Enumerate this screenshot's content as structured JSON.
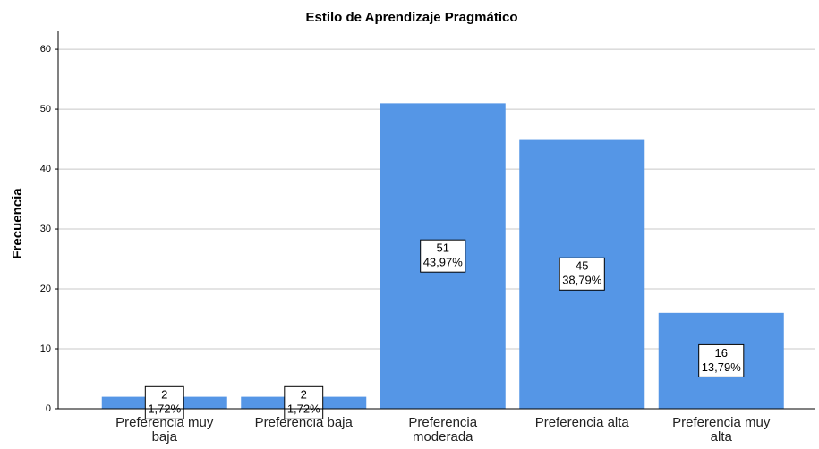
{
  "chart_data": {
    "type": "bar",
    "title": "Estilo de Aprendizaje Pragmático",
    "y_label": "Frecuencia",
    "categories": [
      "Preferencia muy baja",
      "Preferencia baja",
      "Preferencia moderada",
      "Preferencia alta",
      "Preferencia muy alta"
    ],
    "values": [
      2,
      2,
      51,
      45,
      16
    ],
    "percent": [
      1.72,
      1.72,
      43.97,
      38.79,
      13.79
    ],
    "percent_labels": [
      "1,72%",
      "1,72%",
      "43,97%",
      "38,79%",
      "13,79%"
    ],
    "color": "#5596e6",
    "ylim": [
      0,
      63
    ],
    "yticks": [
      0,
      10,
      20,
      30,
      40,
      50,
      60
    ],
    "grid": true
  }
}
